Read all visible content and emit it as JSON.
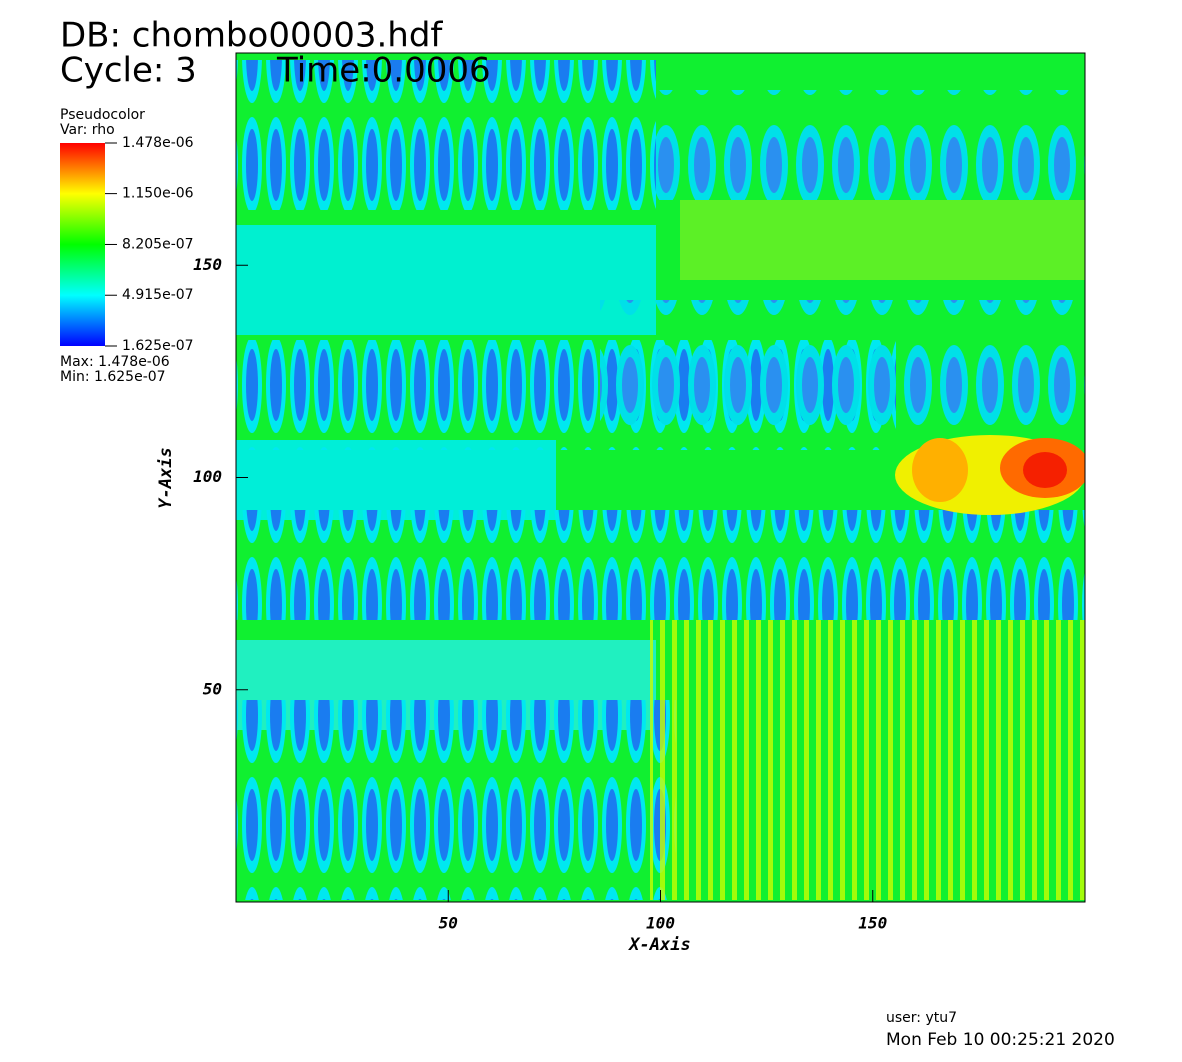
{
  "chart_data": {
    "type": "pseudocolor",
    "title": "DB: chombo00003.hdf",
    "cycle": "Cycle: 3",
    "time": "Time:0.0006",
    "legend_title": "Pseudocolor",
    "legend_var": "Var: rho",
    "legend_max": "Max: 1.478e-06",
    "legend_min": "Min: 1.625e-07",
    "xlabel": "X-Axis",
    "ylabel": "Y-Axis",
    "xlim": [
      0,
      200
    ],
    "ylim": [
      0,
      200
    ],
    "xticks": [
      50,
      100,
      150
    ],
    "yticks": [
      50,
      100,
      150
    ],
    "clim": [
      1.625e-07,
      1.478e-06
    ],
    "cticks": [
      {
        "value": 1.478e-06,
        "label": "1.478e-06"
      },
      {
        "value": 1.15e-06,
        "label": "1.150e-06"
      },
      {
        "value": 8.205e-07,
        "label": "8.205e-07"
      },
      {
        "value": 4.915e-07,
        "label": "4.915e-07"
      },
      {
        "value": 1.625e-07,
        "label": "1.625e-07"
      }
    ],
    "user": "user: ytu7",
    "date": "Mon Feb 10 00:25:21 2020"
  }
}
